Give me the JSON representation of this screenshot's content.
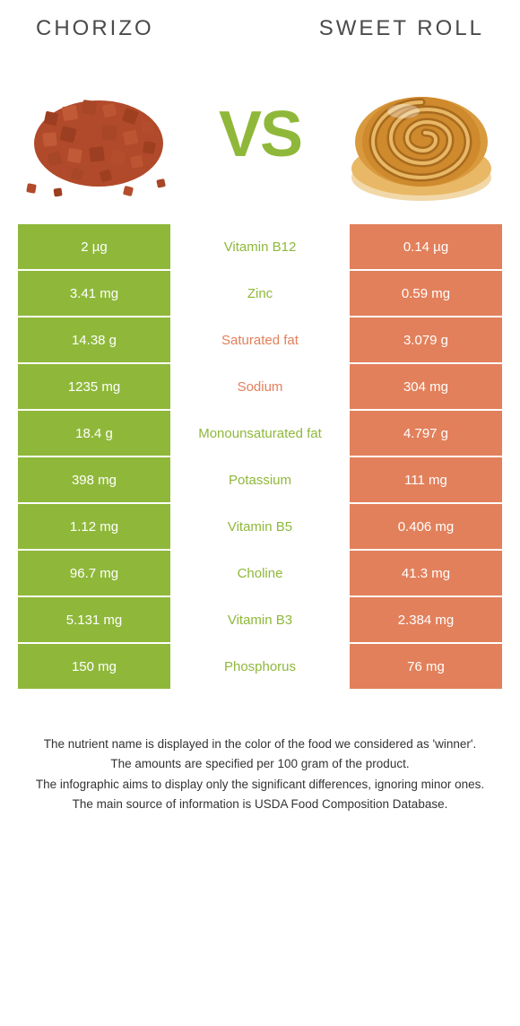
{
  "header": {
    "left_title": "Chorizo",
    "right_title": "Sweet roll"
  },
  "vs_label": "VS",
  "colors": {
    "left_bg": "#8fb83a",
    "right_bg": "#e2805b",
    "left_text": "#8fb83a",
    "right_text": "#e2805b",
    "vs_text": "#8fb83a"
  },
  "rows": [
    {
      "left": "2 µg",
      "mid": "Vitamin B12",
      "right": "0.14 µg",
      "winner": "left"
    },
    {
      "left": "3.41 mg",
      "mid": "Zinc",
      "right": "0.59 mg",
      "winner": "left"
    },
    {
      "left": "14.38 g",
      "mid": "Saturated fat",
      "right": "3.079 g",
      "winner": "right"
    },
    {
      "left": "1235 mg",
      "mid": "Sodium",
      "right": "304 mg",
      "winner": "right"
    },
    {
      "left": "18.4 g",
      "mid": "Monounsaturated fat",
      "right": "4.797 g",
      "winner": "left"
    },
    {
      "left": "398 mg",
      "mid": "Potassium",
      "right": "111 mg",
      "winner": "left"
    },
    {
      "left": "1.12 mg",
      "mid": "Vitamin B5",
      "right": "0.406 mg",
      "winner": "left"
    },
    {
      "left": "96.7 mg",
      "mid": "Choline",
      "right": "41.3 mg",
      "winner": "left"
    },
    {
      "left": "5.131 mg",
      "mid": "Vitamin B3",
      "right": "2.384 mg",
      "winner": "left"
    },
    {
      "left": "150 mg",
      "mid": "Phosphorus",
      "right": "76 mg",
      "winner": "left"
    }
  ],
  "footnotes": [
    "The nutrient name is displayed in the color of the food we considered as 'winner'.",
    "The amounts are specified per 100 gram of the product.",
    "The infographic aims to display only the significant differences, ignoring minor ones.",
    "The main source of information is USDA Food Composition Database."
  ]
}
